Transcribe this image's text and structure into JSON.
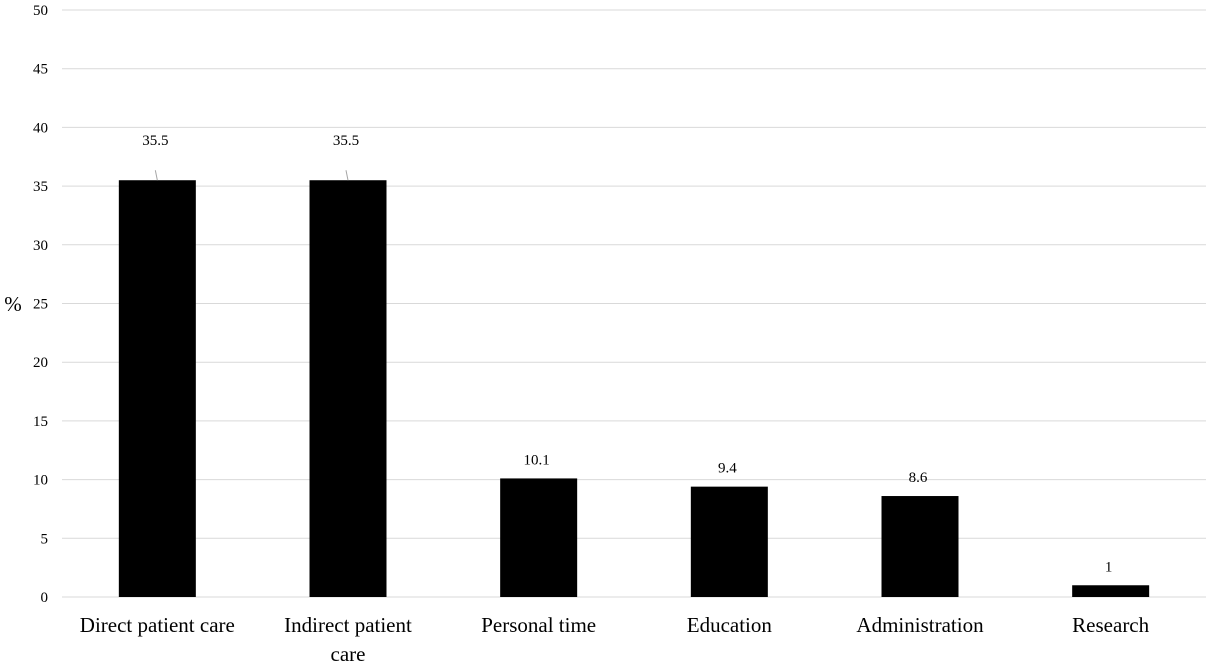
{
  "chart_data": {
    "type": "bar",
    "title": "",
    "xlabel": "",
    "ylabel": "%",
    "ylim": [
      0,
      50
    ],
    "yticks": [
      0,
      5,
      10,
      15,
      20,
      25,
      30,
      35,
      40,
      45,
      50
    ],
    "grid": true,
    "categories": [
      [
        "Direct patient care"
      ],
      [
        "Indirect patient",
        "care"
      ],
      [
        "Personal time"
      ],
      [
        "Education"
      ],
      [
        "Administration"
      ],
      [
        "Research"
      ]
    ],
    "values": [
      35.5,
      35.5,
      10.1,
      9.4,
      8.6,
      1
    ],
    "data_labels": [
      "35.5",
      "35.5",
      "10.1",
      "9.4",
      "8.6",
      "1"
    ],
    "bar_color": "#000000",
    "grid_color": "#d9d9d9"
  }
}
